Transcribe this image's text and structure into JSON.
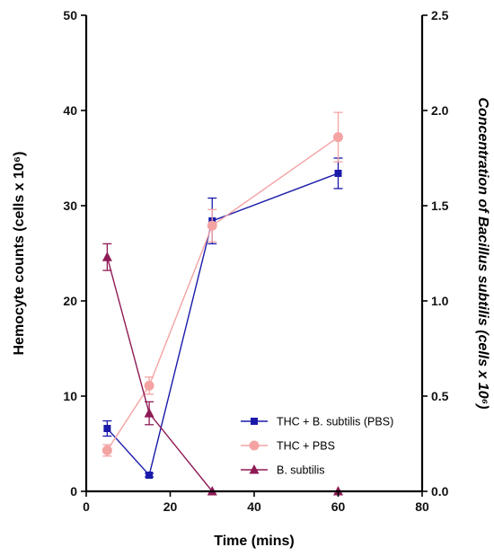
{
  "chart_data": {
    "type": "line",
    "xlabel": "Time (mins)",
    "ylabel": "Hemocyte counts (cells x 10⁶)",
    "y2label": "Concentration of Bacillus subtilis (cells x 10⁶)",
    "xlim": [
      0,
      80
    ],
    "ylim": [
      0,
      50
    ],
    "y2lim": [
      0,
      2.5
    ],
    "xticks": [
      "0",
      "20",
      "40",
      "60",
      "80"
    ],
    "yticks": [
      "0",
      "10",
      "20",
      "30",
      "40",
      "50"
    ],
    "y2ticks": [
      "0.0",
      "0.5",
      "1.0",
      "1.5",
      "2.0",
      "2.5"
    ],
    "grid": false,
    "legend_position": "bottom-right",
    "series": [
      {
        "name": "THC + B. subtilis (PBS)",
        "axis": "left",
        "color": "#1a1aaa",
        "marker": "square",
        "x": [
          5,
          15,
          30,
          60
        ],
        "y": [
          6.6,
          1.7,
          28.4,
          33.4
        ],
        "err": [
          0.8,
          0.2,
          2.4,
          1.6
        ]
      },
      {
        "name": "THC + PBS",
        "axis": "left",
        "color": "#f4a3a3",
        "marker": "circle",
        "x": [
          5,
          15,
          30,
          60
        ],
        "y": [
          4.3,
          11.1,
          27.9,
          37.2
        ],
        "err": [
          0.6,
          0.9,
          1.7,
          2.6
        ]
      },
      {
        "name": "B. subtilis",
        "axis": "right",
        "color": "#8e1a55",
        "marker": "triangle",
        "x": [
          5,
          15,
          30,
          60
        ],
        "y": [
          1.23,
          0.41,
          0.0,
          0.0
        ],
        "err": [
          0.07,
          0.06,
          0.0,
          0.0
        ]
      }
    ]
  }
}
